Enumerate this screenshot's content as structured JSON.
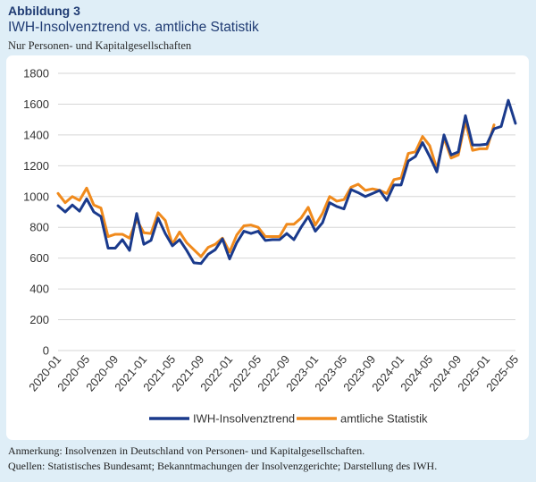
{
  "figure": {
    "label": "Abbildung 3",
    "title": "IWH-Insolvenztrend vs. amtliche Statistik",
    "subtitle": "Nur Personen- und Kapitalgesellschaften"
  },
  "notes": {
    "annotation": "Anmerkung: Insolvenzen in Deutschland von Personen- und Kapitalgesellschaften.",
    "sources": "Quellen: Statistisches Bundesamt; Bekanntmachungen der Insolvenzgerichte; Darstellung des IWH."
  },
  "colors": {
    "iwh": "#1a3a8c",
    "official": "#f08a1c",
    "grid": "#d6d6d6",
    "text": "#333333"
  },
  "chart_data": {
    "type": "line",
    "title": "IWH-Insolvenztrend vs. amtliche Statistik",
    "xlabel": "",
    "ylabel": "",
    "ylim": [
      0,
      1800
    ],
    "yticks": [
      0,
      200,
      400,
      600,
      800,
      1000,
      1200,
      1400,
      1600,
      1800
    ],
    "grid": true,
    "legend_position": "bottom",
    "xtick_labels": [
      "2020-01",
      "2020-05",
      "2020-09",
      "2021-01",
      "2021-05",
      "2021-09",
      "2022-01",
      "2022-05",
      "2022-09",
      "2023-01",
      "2023-05",
      "2023-09",
      "2024-01",
      "2024-05",
      "2024-09",
      "2025-01",
      "2025-05"
    ],
    "xtick_step": 4,
    "x": [
      "2020-01",
      "2020-02",
      "2020-03",
      "2020-04",
      "2020-05",
      "2020-06",
      "2020-07",
      "2020-08",
      "2020-09",
      "2020-10",
      "2020-11",
      "2020-12",
      "2021-01",
      "2021-02",
      "2021-03",
      "2021-04",
      "2021-05",
      "2021-06",
      "2021-07",
      "2021-08",
      "2021-09",
      "2021-10",
      "2021-11",
      "2021-12",
      "2022-01",
      "2022-02",
      "2022-03",
      "2022-04",
      "2022-05",
      "2022-06",
      "2022-07",
      "2022-08",
      "2022-09",
      "2022-10",
      "2022-11",
      "2022-12",
      "2023-01",
      "2023-02",
      "2023-03",
      "2023-04",
      "2023-05",
      "2023-06",
      "2023-07",
      "2023-08",
      "2023-09",
      "2023-10",
      "2023-11",
      "2023-12",
      "2024-01",
      "2024-02",
      "2024-03",
      "2024-04",
      "2024-05",
      "2024-06",
      "2024-07",
      "2024-08",
      "2024-09",
      "2024-10",
      "2024-11",
      "2024-12",
      "2025-01",
      "2025-02",
      "2025-03",
      "2025-04",
      "2025-05"
    ],
    "series": [
      {
        "name": "IWH-Insolvenztrend",
        "color": "#1a3a8c",
        "values": [
          940,
          900,
          945,
          905,
          985,
          900,
          870,
          665,
          665,
          720,
          650,
          890,
          690,
          715,
          860,
          760,
          680,
          720,
          650,
          570,
          565,
          625,
          655,
          725,
          595,
          700,
          775,
          760,
          775,
          715,
          720,
          720,
          760,
          720,
          800,
          870,
          775,
          830,
          960,
          935,
          920,
          1045,
          1025,
          1000,
          1020,
          1040,
          975,
          1075,
          1075,
          1230,
          1260,
          1350,
          1260,
          1160,
          1400,
          1270,
          1290,
          1525,
          1335,
          1335,
          1340,
          1440,
          1455,
          1625,
          1475
        ]
      },
      {
        "name": "amtliche Statistik",
        "color": "#f08a1c",
        "values": [
          1020,
          960,
          1000,
          975,
          1055,
          945,
          925,
          740,
          755,
          755,
          730,
          850,
          765,
          760,
          895,
          845,
          690,
          770,
          700,
          655,
          610,
          670,
          690,
          730,
          640,
          750,
          810,
          815,
          800,
          740,
          740,
          740,
          820,
          820,
          860,
          930,
          815,
          890,
          1000,
          970,
          980,
          1060,
          1080,
          1040,
          1050,
          1040,
          1020,
          1110,
          1120,
          1280,
          1290,
          1390,
          1330,
          1180,
          1380,
          1250,
          1270,
          1490,
          1300,
          1310,
          1310,
          1465,
          null,
          null,
          null
        ]
      }
    ]
  }
}
